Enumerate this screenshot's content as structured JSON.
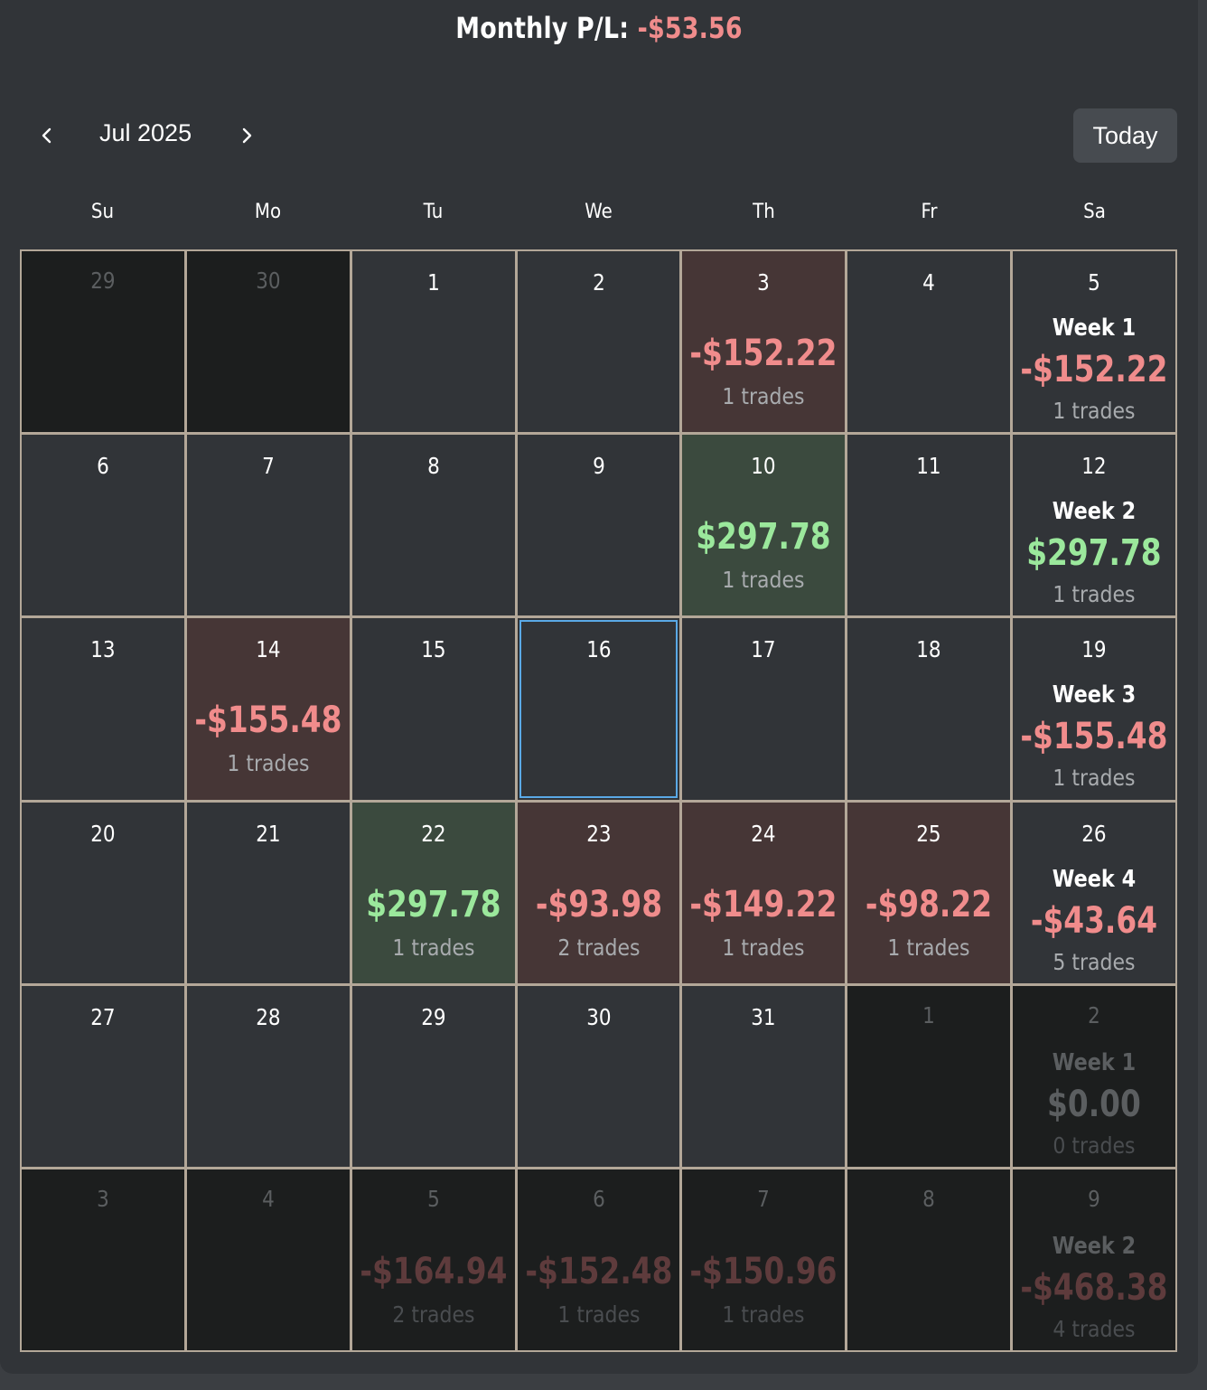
{
  "summary": {
    "label": "Monthly P/L:",
    "value": "-$53.56"
  },
  "toolbar": {
    "month": "Jul 2025",
    "today_label": "Today",
    "prev_icon": "chevron-left-icon",
    "next_icon": "chevron-right-icon"
  },
  "weekdays": [
    "Su",
    "Mo",
    "Tu",
    "We",
    "Th",
    "Fr",
    "Sa"
  ],
  "colors": {
    "positive": "#9be89c",
    "negative": "#f08c8c",
    "selected_border": "#5aa9e6",
    "grid_line": "#b3a798"
  },
  "selected_day": "16",
  "weeks": [
    {
      "days": [
        {
          "day": "29",
          "in_month": false
        },
        {
          "day": "30",
          "in_month": false
        },
        {
          "day": "1",
          "in_month": true
        },
        {
          "day": "2",
          "in_month": true
        },
        {
          "day": "3",
          "in_month": true,
          "pl": "-$152.22",
          "trades": "1 trades",
          "sign": "neg"
        },
        {
          "day": "4",
          "in_month": true
        },
        {
          "day": "5",
          "in_month": true,
          "week_label": "Week 1",
          "pl": "-$152.22",
          "trades": "1 trades",
          "sign": "neg",
          "is_week_summary": true
        }
      ]
    },
    {
      "days": [
        {
          "day": "6",
          "in_month": true
        },
        {
          "day": "7",
          "in_month": true
        },
        {
          "day": "8",
          "in_month": true
        },
        {
          "day": "9",
          "in_month": true
        },
        {
          "day": "10",
          "in_month": true,
          "pl": "$297.78",
          "trades": "1 trades",
          "sign": "pos"
        },
        {
          "day": "11",
          "in_month": true
        },
        {
          "day": "12",
          "in_month": true,
          "week_label": "Week 2",
          "pl": "$297.78",
          "trades": "1 trades",
          "sign": "pos",
          "is_week_summary": true
        }
      ]
    },
    {
      "days": [
        {
          "day": "13",
          "in_month": true
        },
        {
          "day": "14",
          "in_month": true,
          "pl": "-$155.48",
          "trades": "1 trades",
          "sign": "neg"
        },
        {
          "day": "15",
          "in_month": true
        },
        {
          "day": "16",
          "in_month": true,
          "selected": true
        },
        {
          "day": "17",
          "in_month": true
        },
        {
          "day": "18",
          "in_month": true
        },
        {
          "day": "19",
          "in_month": true,
          "week_label": "Week 3",
          "pl": "-$155.48",
          "trades": "1 trades",
          "sign": "neg",
          "is_week_summary": true
        }
      ]
    },
    {
      "days": [
        {
          "day": "20",
          "in_month": true
        },
        {
          "day": "21",
          "in_month": true
        },
        {
          "day": "22",
          "in_month": true,
          "pl": "$297.78",
          "trades": "1 trades",
          "sign": "pos"
        },
        {
          "day": "23",
          "in_month": true,
          "pl": "-$93.98",
          "trades": "2 trades",
          "sign": "neg"
        },
        {
          "day": "24",
          "in_month": true,
          "pl": "-$149.22",
          "trades": "1 trades",
          "sign": "neg"
        },
        {
          "day": "25",
          "in_month": true,
          "pl": "-$98.22",
          "trades": "1 trades",
          "sign": "neg"
        },
        {
          "day": "26",
          "in_month": true,
          "week_label": "Week 4",
          "pl": "-$43.64",
          "trades": "5 trades",
          "sign": "neg",
          "is_week_summary": true
        }
      ]
    },
    {
      "days": [
        {
          "day": "27",
          "in_month": true
        },
        {
          "day": "28",
          "in_month": true
        },
        {
          "day": "29",
          "in_month": true
        },
        {
          "day": "30",
          "in_month": true
        },
        {
          "day": "31",
          "in_month": true
        },
        {
          "day": "1",
          "in_month": false
        },
        {
          "day": "2",
          "in_month": false,
          "week_label": "Week 1",
          "pl": "$0.00",
          "trades": "0 trades",
          "sign": "zero",
          "is_week_summary": true
        }
      ]
    },
    {
      "days": [
        {
          "day": "3",
          "in_month": false
        },
        {
          "day": "4",
          "in_month": false
        },
        {
          "day": "5",
          "in_month": false,
          "pl": "-$164.94",
          "trades": "2 trades",
          "sign": "neg"
        },
        {
          "day": "6",
          "in_month": false,
          "pl": "-$152.48",
          "trades": "1 trades",
          "sign": "neg"
        },
        {
          "day": "7",
          "in_month": false,
          "pl": "-$150.96",
          "trades": "1 trades",
          "sign": "neg"
        },
        {
          "day": "8",
          "in_month": false
        },
        {
          "day": "9",
          "in_month": false,
          "week_label": "Week 2",
          "pl": "-$468.38",
          "trades": "4 trades",
          "sign": "neg",
          "is_week_summary": true
        }
      ]
    }
  ]
}
